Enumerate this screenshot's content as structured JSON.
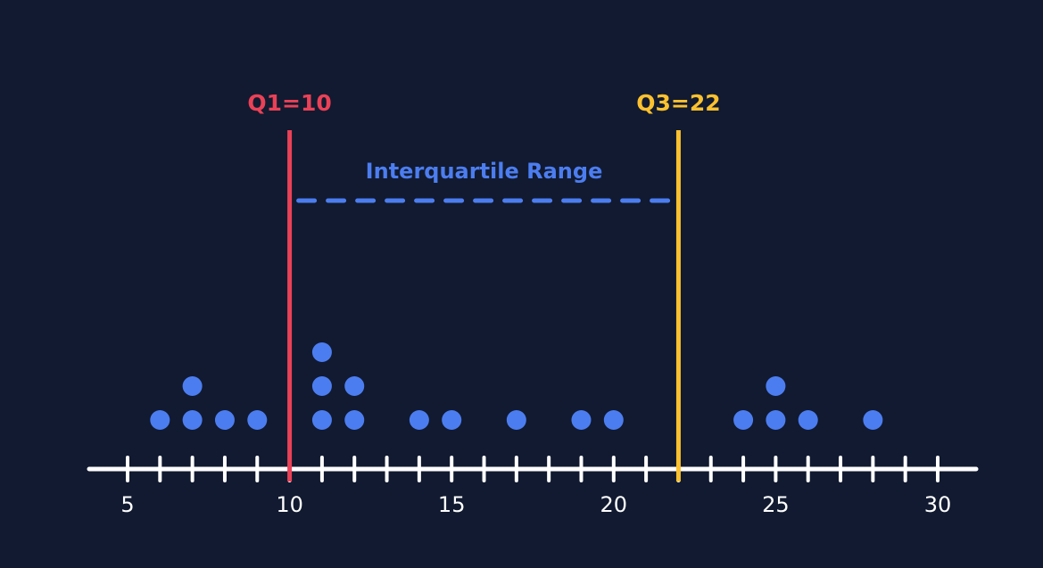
{
  "chart_data": {
    "type": "scatter",
    "subtype": "dot-plot",
    "title": "",
    "xlabel": "",
    "ylabel": "",
    "xlim": [
      5,
      30
    ],
    "tick_step": 1,
    "tick_labels": [
      "5",
      "10",
      "15",
      "20",
      "25",
      "30"
    ],
    "grid": false,
    "points": [
      6,
      7,
      7,
      8,
      9,
      11,
      11,
      11,
      12,
      12,
      14,
      15,
      17,
      19,
      20,
      24,
      25,
      25,
      26,
      28
    ],
    "quartiles": [
      {
        "name": "Q1",
        "label": "Q1=10",
        "value": 10,
        "color": "#ea4157"
      },
      {
        "name": "Q3",
        "label": "Q3=22",
        "value": 22,
        "color": "#fcc12f"
      }
    ],
    "annotations": [
      {
        "text": "Interquartile Range",
        "from": 10,
        "to": 22,
        "style": "dashed",
        "color": "#4c7df0"
      }
    ],
    "colors": {
      "background": "#111a30",
      "axis": "#ffffff",
      "points": "#4c7df0"
    }
  }
}
